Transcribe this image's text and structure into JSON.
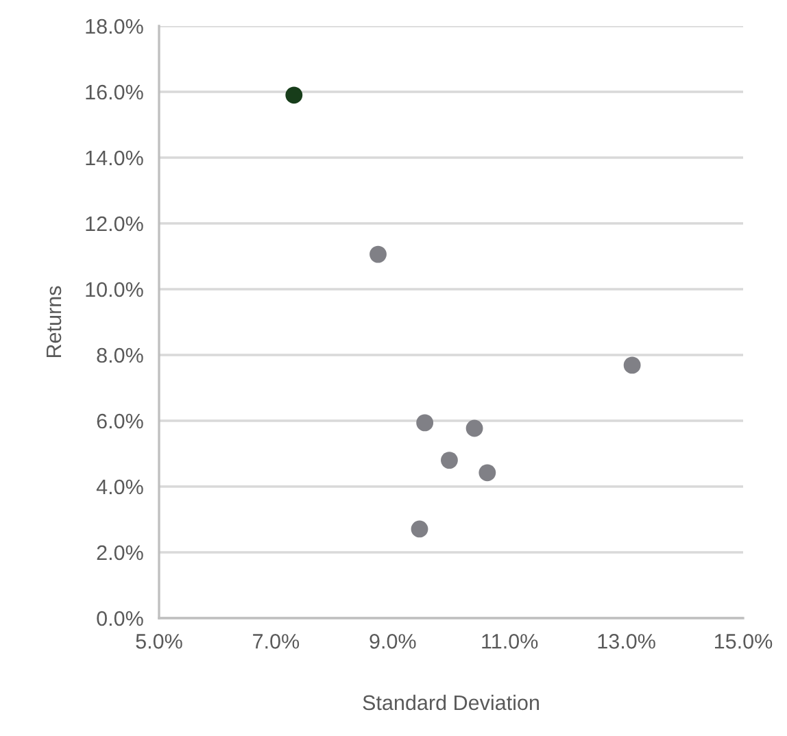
{
  "chart_data": {
    "type": "scatter",
    "xlabel": "Standard Deviation",
    "ylabel": "Returns",
    "series": [
      {
        "color": "#173d1a",
        "x": [
          7.31
        ],
        "values": [
          15.9
        ]
      },
      {
        "color": "#808086",
        "x": [
          8.75,
          13.1,
          9.55,
          10.4,
          9.97,
          10.62,
          9.46
        ],
        "values": [
          11.06,
          7.69,
          5.94,
          5.77,
          4.8,
          4.42,
          2.71
        ]
      }
    ],
    "xlim": [
      5,
      15
    ],
    "xticks": [
      {
        "value": 5,
        "label": "5.0%"
      },
      {
        "value": 7,
        "label": "7.0%"
      },
      {
        "value": 9,
        "label": "9.0%"
      },
      {
        "value": 11,
        "label": "11.0%"
      },
      {
        "value": 13,
        "label": "13.0%"
      },
      {
        "value": 15,
        "label": "15.0%"
      }
    ],
    "ylim": [
      0,
      18
    ],
    "yticks": [
      {
        "value": 0,
        "label": "0.0%"
      },
      {
        "value": 2,
        "label": "2.0%"
      },
      {
        "value": 4,
        "label": "4.0%"
      },
      {
        "value": 6,
        "label": "6.0%"
      },
      {
        "value": 8,
        "label": "8.0%"
      },
      {
        "value": 10,
        "label": "10.0%"
      },
      {
        "value": 12,
        "label": "12.0%"
      },
      {
        "value": 14,
        "label": "14.0%"
      },
      {
        "value": 16,
        "label": "16.0%"
      },
      {
        "value": 18,
        "label": "18.0%"
      }
    ],
    "grid": "y",
    "marker": "circle"
  }
}
